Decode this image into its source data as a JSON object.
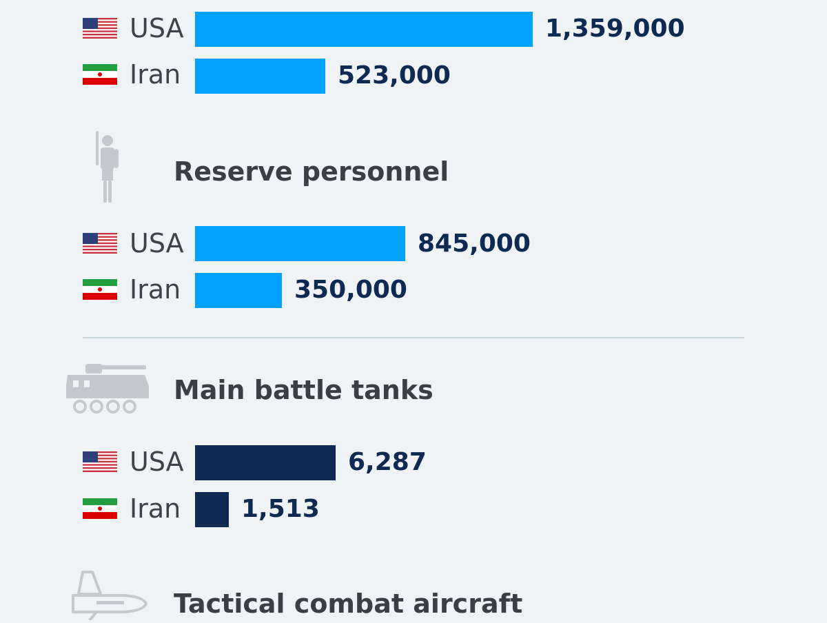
{
  "colors": {
    "personnel_bar": "#00a1ff",
    "tanks_bar": "#0e2a53",
    "value_text": "#0e2a53",
    "heading_text": "#3a3f45",
    "icon_gray": "#c4c9ce",
    "background": "#f0f3f6"
  },
  "chart_data": [
    {
      "type": "bar",
      "title": "",
      "categories": [
        "USA",
        "Iran"
      ],
      "values": [
        1359000,
        523000
      ],
      "value_labels": [
        "1,359,000",
        "523,000"
      ]
    },
    {
      "type": "bar",
      "title": "Reserve personnel",
      "icon": "soldier-icon",
      "categories": [
        "USA",
        "Iran"
      ],
      "values": [
        845000,
        350000
      ],
      "value_labels": [
        "845,000",
        "350,000"
      ]
    },
    {
      "type": "bar",
      "title": "Main battle tanks",
      "icon": "tank-icon",
      "categories": [
        "USA",
        "Iran"
      ],
      "values": [
        6287,
        1513
      ],
      "value_labels": [
        "6,287",
        "1,513"
      ]
    },
    {
      "type": "bar",
      "title": "Tactical combat aircraft",
      "icon": "fighter-jet-icon",
      "categories": [],
      "values": []
    }
  ]
}
